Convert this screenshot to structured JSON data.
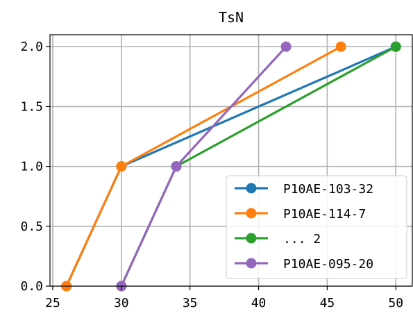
{
  "chart_data": {
    "type": "line",
    "title": "TsN",
    "xlabel": "",
    "ylabel": "",
    "xlim": [
      24.8,
      51.2
    ],
    "ylim": [
      0.0,
      2.1
    ],
    "xticks": [
      25,
      30,
      35,
      40,
      45,
      50
    ],
    "yticks": [
      0.0,
      0.5,
      1.0,
      1.5,
      2.0
    ],
    "xtick_labels": [
      "25",
      "30",
      "35",
      "40",
      "45",
      "50"
    ],
    "ytick_labels": [
      "0.0",
      "0.5",
      "1.0",
      "1.5",
      "2.0"
    ],
    "grid": true,
    "legend_position": "lower-right",
    "series": [
      {
        "name": "P10AE-103-32",
        "color": "#1f77b4",
        "x": [
          26,
          30,
          50
        ],
        "y": [
          0.0,
          1.0,
          2.0
        ]
      },
      {
        "name": "P10AE-114-7",
        "color": "#ff7f0e",
        "x": [
          26,
          30,
          46
        ],
        "y": [
          0.0,
          1.0,
          2.0
        ]
      },
      {
        "name": "... 2",
        "color": "#2ca02c",
        "x": [
          30,
          34,
          50
        ],
        "y": [
          0.0,
          1.0,
          2.0
        ]
      },
      {
        "name": "P10AE-095-20",
        "color": "#9467bd",
        "x": [
          30,
          34,
          42
        ],
        "y": [
          0.0,
          1.0,
          2.0
        ]
      }
    ]
  }
}
